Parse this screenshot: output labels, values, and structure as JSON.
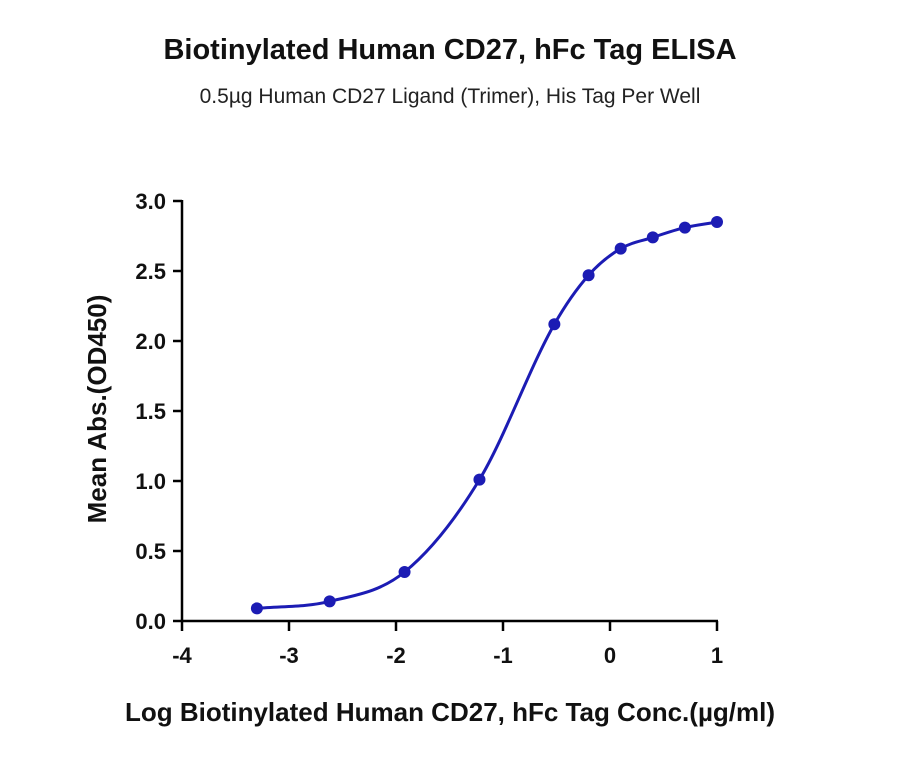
{
  "chart_data": {
    "type": "line",
    "title": "Biotinylated Human CD27, hFc Tag ELISA",
    "subtitle": "0.5µg Human CD27 Ligand (Trimer), His Tag Per Well",
    "xlabel": "Log  Biotinylated Human CD27, hFc Tag Conc.(µg/ml)",
    "ylabel": "Mean Abs.(OD450)",
    "xlim": [
      -4,
      1
    ],
    "ylim": [
      0,
      3.0
    ],
    "x_ticks": [
      "-4",
      "-3",
      "-2",
      "-1",
      "0",
      "1"
    ],
    "y_ticks": [
      "0.0",
      "0.5",
      "1.0",
      "1.5",
      "2.0",
      "2.5",
      "3.0"
    ],
    "grid": false,
    "series": [
      {
        "color": "#1c1cb4",
        "points": [
          {
            "x": -3.3,
            "y": 0.09
          },
          {
            "x": -2.62,
            "y": 0.14
          },
          {
            "x": -1.92,
            "y": 0.35
          },
          {
            "x": -1.22,
            "y": 1.01
          },
          {
            "x": -0.52,
            "y": 2.12
          },
          {
            "x": -0.2,
            "y": 2.47
          },
          {
            "x": 0.1,
            "y": 2.66
          },
          {
            "x": 0.4,
            "y": 2.74
          },
          {
            "x": 0.7,
            "y": 2.81
          },
          {
            "x": 1.0,
            "y": 2.85
          }
        ]
      }
    ]
  }
}
